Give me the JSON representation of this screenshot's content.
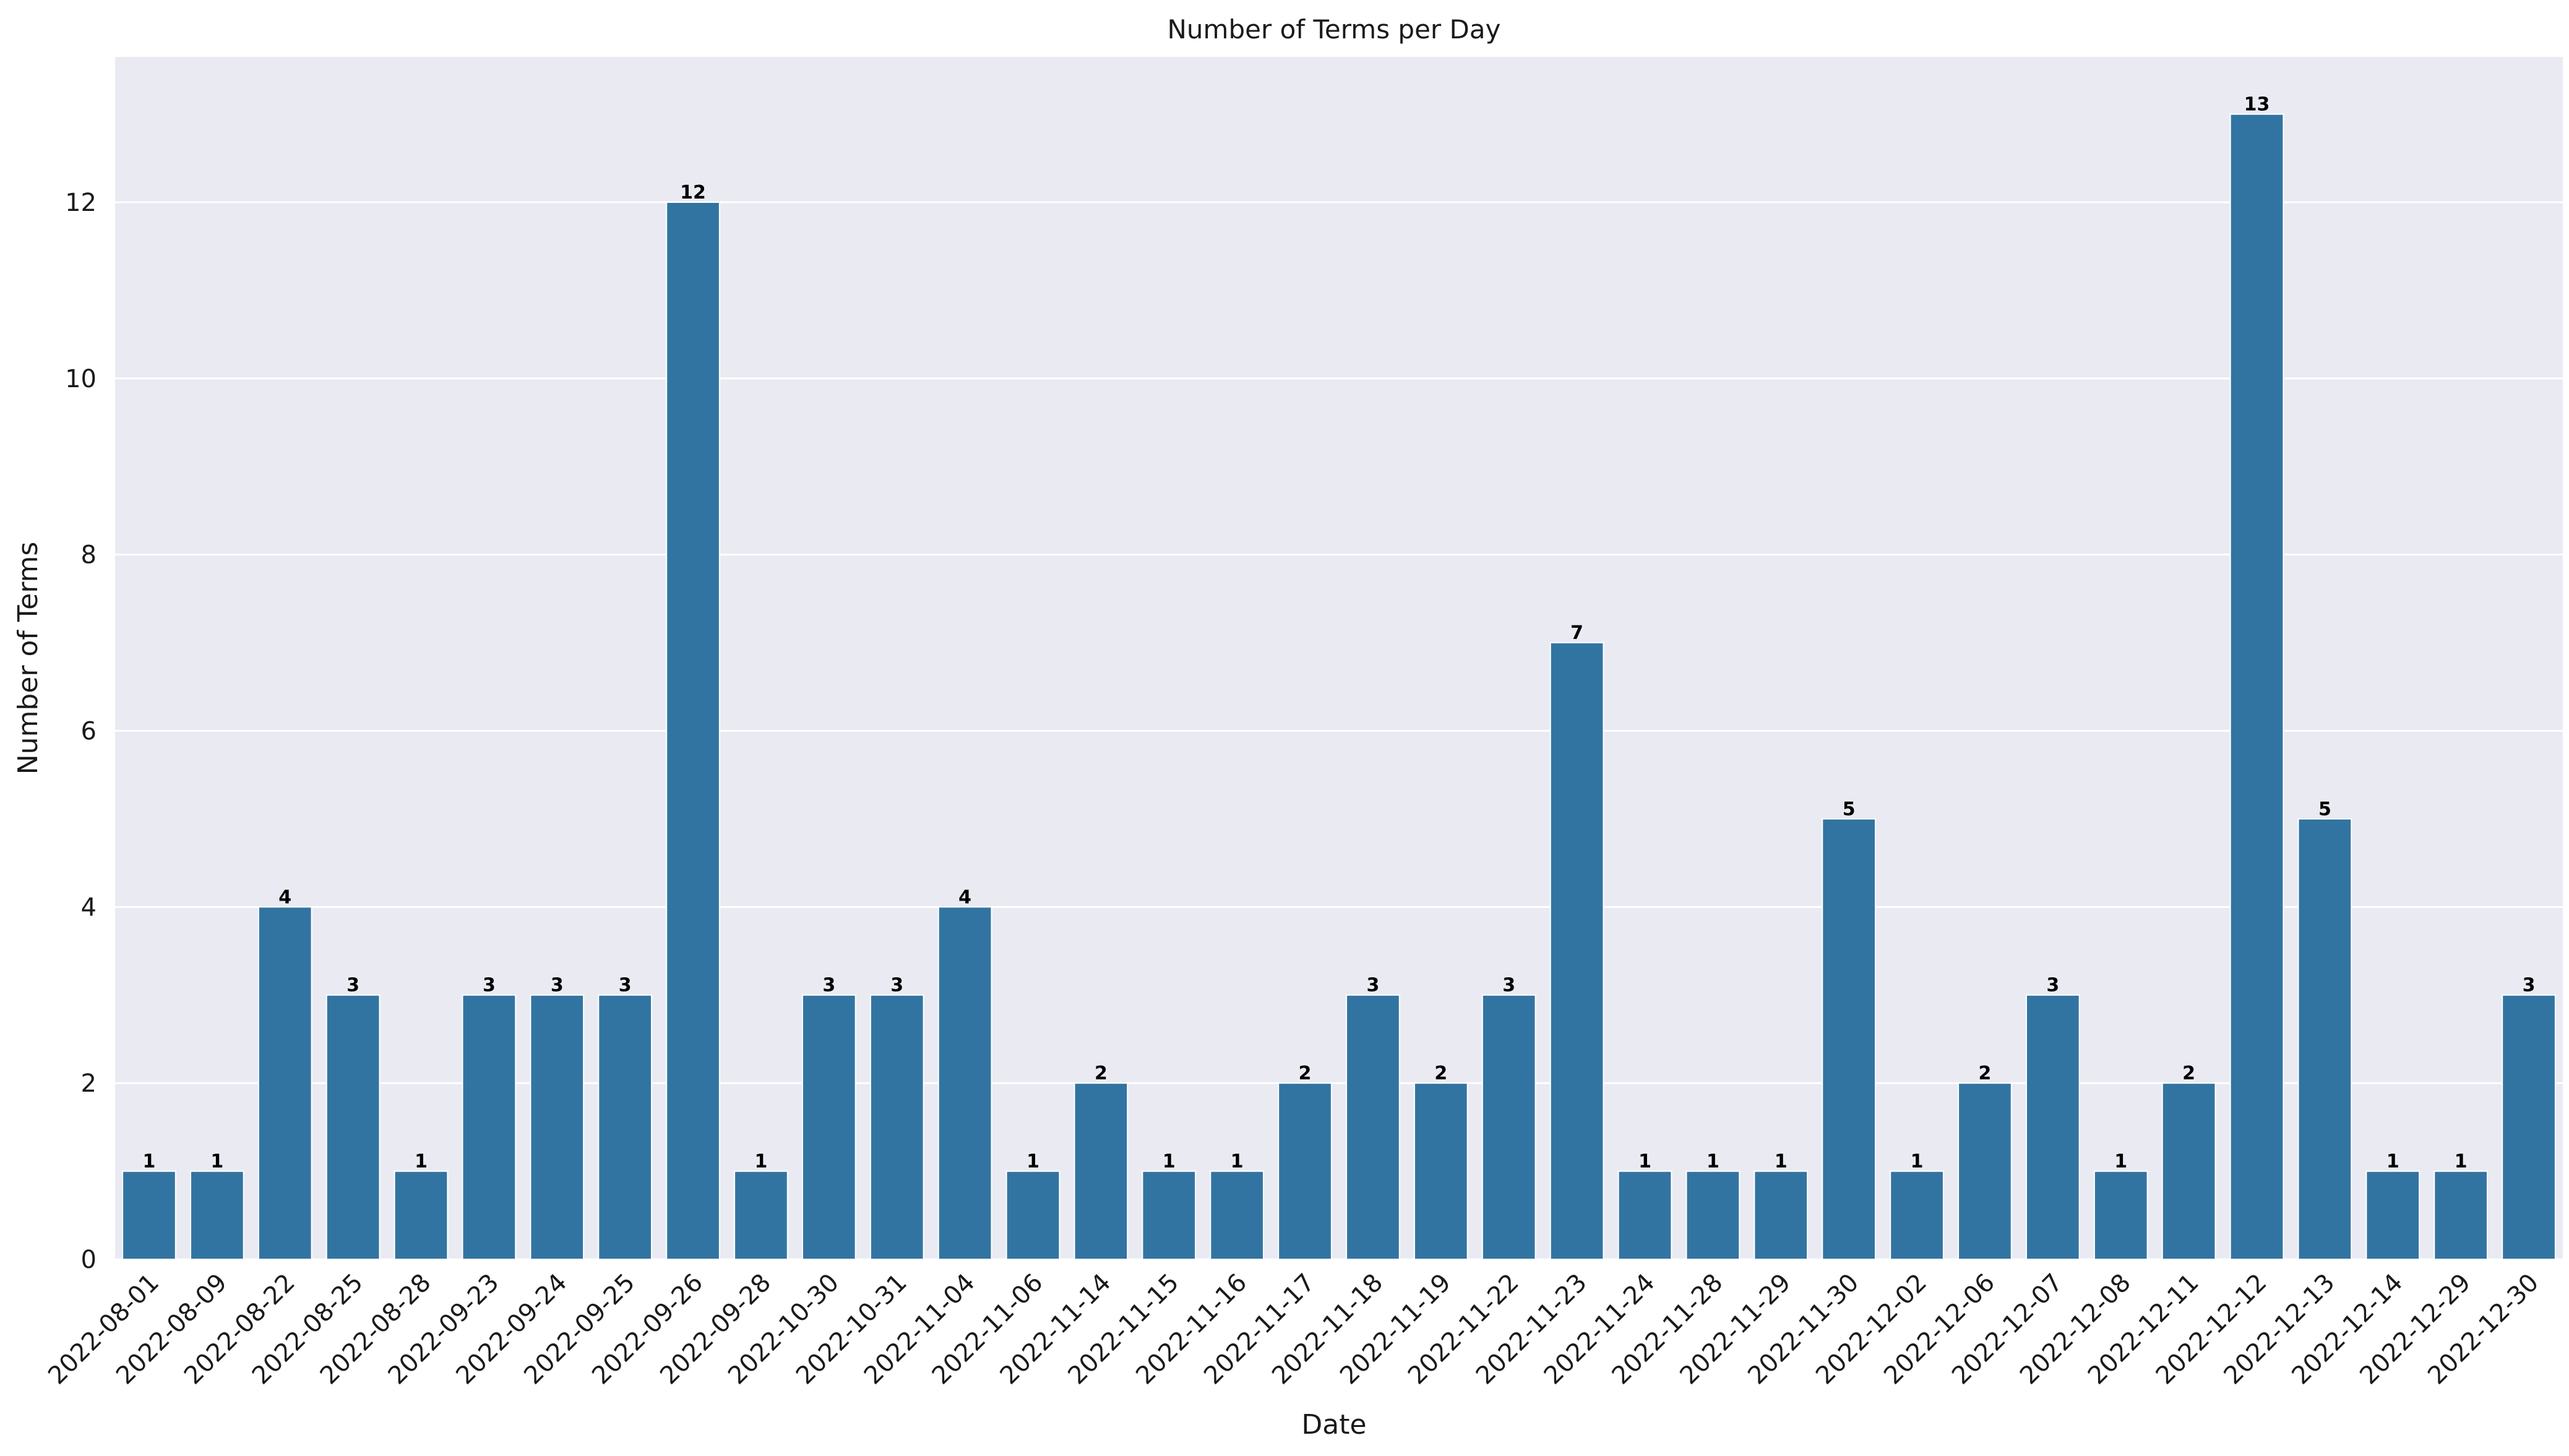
{
  "chart_data": {
    "type": "bar",
    "title": "Number of Terms per Day",
    "xlabel": "Date",
    "ylabel": "Number of Terms",
    "ylim": [
      0,
      13.65
    ],
    "yticks": [
      0,
      2,
      4,
      6,
      8,
      10,
      12
    ],
    "grid": true,
    "legend": "none",
    "categories": [
      "2022-08-01",
      "2022-08-09",
      "2022-08-22",
      "2022-08-25",
      "2022-08-28",
      "2022-09-23",
      "2022-09-24",
      "2022-09-25",
      "2022-09-26",
      "2022-09-28",
      "2022-10-30",
      "2022-10-31",
      "2022-11-04",
      "2022-11-06",
      "2022-11-14",
      "2022-11-15",
      "2022-11-16",
      "2022-11-17",
      "2022-11-18",
      "2022-11-19",
      "2022-11-22",
      "2022-11-23",
      "2022-11-24",
      "2022-11-28",
      "2022-11-29",
      "2022-11-30",
      "2022-12-02",
      "2022-12-06",
      "2022-12-07",
      "2022-12-08",
      "2022-12-11",
      "2022-12-12",
      "2022-12-13",
      "2022-12-14",
      "2022-12-29",
      "2022-12-30"
    ],
    "values": [
      1,
      1,
      4,
      3,
      1,
      3,
      3,
      3,
      12,
      1,
      3,
      3,
      4,
      1,
      2,
      1,
      1,
      2,
      3,
      2,
      3,
      7,
      1,
      1,
      1,
      5,
      1,
      2,
      3,
      1,
      2,
      13,
      5,
      1,
      1,
      3
    ],
    "colors": {
      "bar": "#3274a1",
      "background": "#eaeaf2",
      "grid": "#ffffff"
    }
  }
}
